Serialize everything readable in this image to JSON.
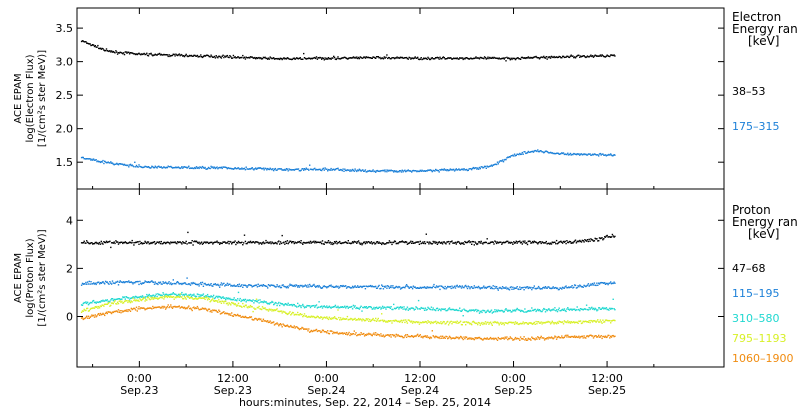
{
  "chart_data": [
    {
      "type": "scatter",
      "ylabel_lines": [
        "ACE EPAM",
        "log(Electron Flux)",
        "[1/(cm²s ster MeV)]"
      ],
      "yticks": [
        "1.5",
        "2.0",
        "2.5",
        "3.0",
        "3.5"
      ],
      "ylim": [
        1.1,
        3.8
      ],
      "legend_title_lines": [
        "Electron",
        "Energy ran",
        "[keV]"
      ],
      "series": [
        {
          "name": "38–53",
          "color": "#000000",
          "points": [
            [
              -7.5,
              3.32
            ],
            [
              -6,
              3.25
            ],
            [
              -4,
              3.16
            ],
            [
              0,
              3.12
            ],
            [
              6,
              3.1
            ],
            [
              12,
              3.08
            ],
            [
              18,
              3.05
            ],
            [
              24,
              3.06
            ],
            [
              30,
              3.07
            ],
            [
              36,
              3.06
            ],
            [
              42,
              3.06
            ],
            [
              48,
              3.06
            ],
            [
              54,
              3.08
            ],
            [
              60,
              3.1
            ],
            [
              61,
              3.1
            ]
          ]
        },
        {
          "name": "175–315",
          "color": "#1c80d8",
          "points": [
            [
              -7.5,
              1.58
            ],
            [
              -4,
              1.5
            ],
            [
              0,
              1.44
            ],
            [
              6,
              1.43
            ],
            [
              12,
              1.42
            ],
            [
              18,
              1.4
            ],
            [
              24,
              1.4
            ],
            [
              30,
              1.38
            ],
            [
              36,
              1.38
            ],
            [
              42,
              1.4
            ],
            [
              45,
              1.45
            ],
            [
              48,
              1.62
            ],
            [
              51,
              1.68
            ],
            [
              54,
              1.63
            ],
            [
              61,
              1.62
            ]
          ]
        }
      ]
    },
    {
      "type": "scatter",
      "ylabel_lines": [
        "ACE EPAM",
        "log(Proton Flux)",
        "[1/(cm²s ster MeV)]"
      ],
      "yticks": [
        "0",
        "2",
        "4"
      ],
      "ylim": [
        -2.1,
        5.3
      ],
      "legend_title_lines": [
        "Proton",
        "Energy ran",
        "[keV]"
      ],
      "series": [
        {
          "name": "47–68",
          "color": "#000000",
          "points": [
            [
              -7.5,
              3.1
            ],
            [
              0,
              3.1
            ],
            [
              12,
              3.1
            ],
            [
              24,
              3.1
            ],
            [
              36,
              3.1
            ],
            [
              42,
              3.1
            ],
            [
              48,
              3.1
            ],
            [
              54,
              3.1
            ],
            [
              58,
              3.2
            ],
            [
              61,
              3.4
            ]
          ]
        },
        {
          "name": "115–195",
          "color": "#1c80d8",
          "points": [
            [
              -7.5,
              1.4
            ],
            [
              -2,
              1.45
            ],
            [
              6,
              1.4
            ],
            [
              12,
              1.32
            ],
            [
              24,
              1.28
            ],
            [
              36,
              1.25
            ],
            [
              42,
              1.25
            ],
            [
              48,
              1.2
            ],
            [
              54,
              1.22
            ],
            [
              58,
              1.35
            ],
            [
              61,
              1.45
            ]
          ]
        },
        {
          "name": "310–580",
          "color": "#20d8d0",
          "points": [
            [
              -7.5,
              0.55
            ],
            [
              -4,
              0.7
            ],
            [
              0,
              0.85
            ],
            [
              4,
              0.95
            ],
            [
              8,
              0.9
            ],
            [
              12,
              0.75
            ],
            [
              18,
              0.55
            ],
            [
              22,
              0.45
            ],
            [
              28,
              0.4
            ],
            [
              36,
              0.35
            ],
            [
              44,
              0.25
            ],
            [
              50,
              0.28
            ],
            [
              56,
              0.32
            ],
            [
              61,
              0.35
            ]
          ]
        },
        {
          "name": "795–1193",
          "color": "#d8f028",
          "points": [
            [
              -7.5,
              0.25
            ],
            [
              -4,
              0.55
            ],
            [
              0,
              0.72
            ],
            [
              4,
              0.85
            ],
            [
              8,
              0.78
            ],
            [
              12,
              0.55
            ],
            [
              18,
              0.25
            ],
            [
              22,
              0.0
            ],
            [
              28,
              -0.1
            ],
            [
              36,
              -0.2
            ],
            [
              44,
              -0.25
            ],
            [
              50,
              -0.25
            ],
            [
              56,
              -0.2
            ],
            [
              61,
              -0.15
            ]
          ]
        },
        {
          "name": "1060–1900",
          "color": "#f08c10",
          "points": [
            [
              -7.5,
              -0.05
            ],
            [
              -4,
              0.2
            ],
            [
              0,
              0.35
            ],
            [
              4,
              0.45
            ],
            [
              8,
              0.35
            ],
            [
              12,
              0.1
            ],
            [
              18,
              -0.3
            ],
            [
              22,
              -0.55
            ],
            [
              28,
              -0.7
            ],
            [
              36,
              -0.8
            ],
            [
              44,
              -0.9
            ],
            [
              50,
              -0.9
            ],
            [
              56,
              -0.8
            ],
            [
              61,
              -0.8
            ]
          ]
        }
      ]
    }
  ],
  "xaxis": {
    "xlim_hours": [
      -8,
      75
    ],
    "ticks": [
      {
        "t": 0,
        "l1": "0:00",
        "l2": "Sep.23"
      },
      {
        "t": 12,
        "l1": "12:00",
        "l2": "Sep.23"
      },
      {
        "t": 24,
        "l1": "0:00",
        "l2": "Sep.24"
      },
      {
        "t": 36,
        "l1": "12:00",
        "l2": "Sep.24"
      },
      {
        "t": 48,
        "l1": "0:00",
        "l2": "Sep.25"
      },
      {
        "t": 60,
        "l1": "12:00",
        "l2": "Sep.25"
      }
    ],
    "label": "hours:minutes, Sep. 22, 2014 – Sep. 25, 2014"
  }
}
